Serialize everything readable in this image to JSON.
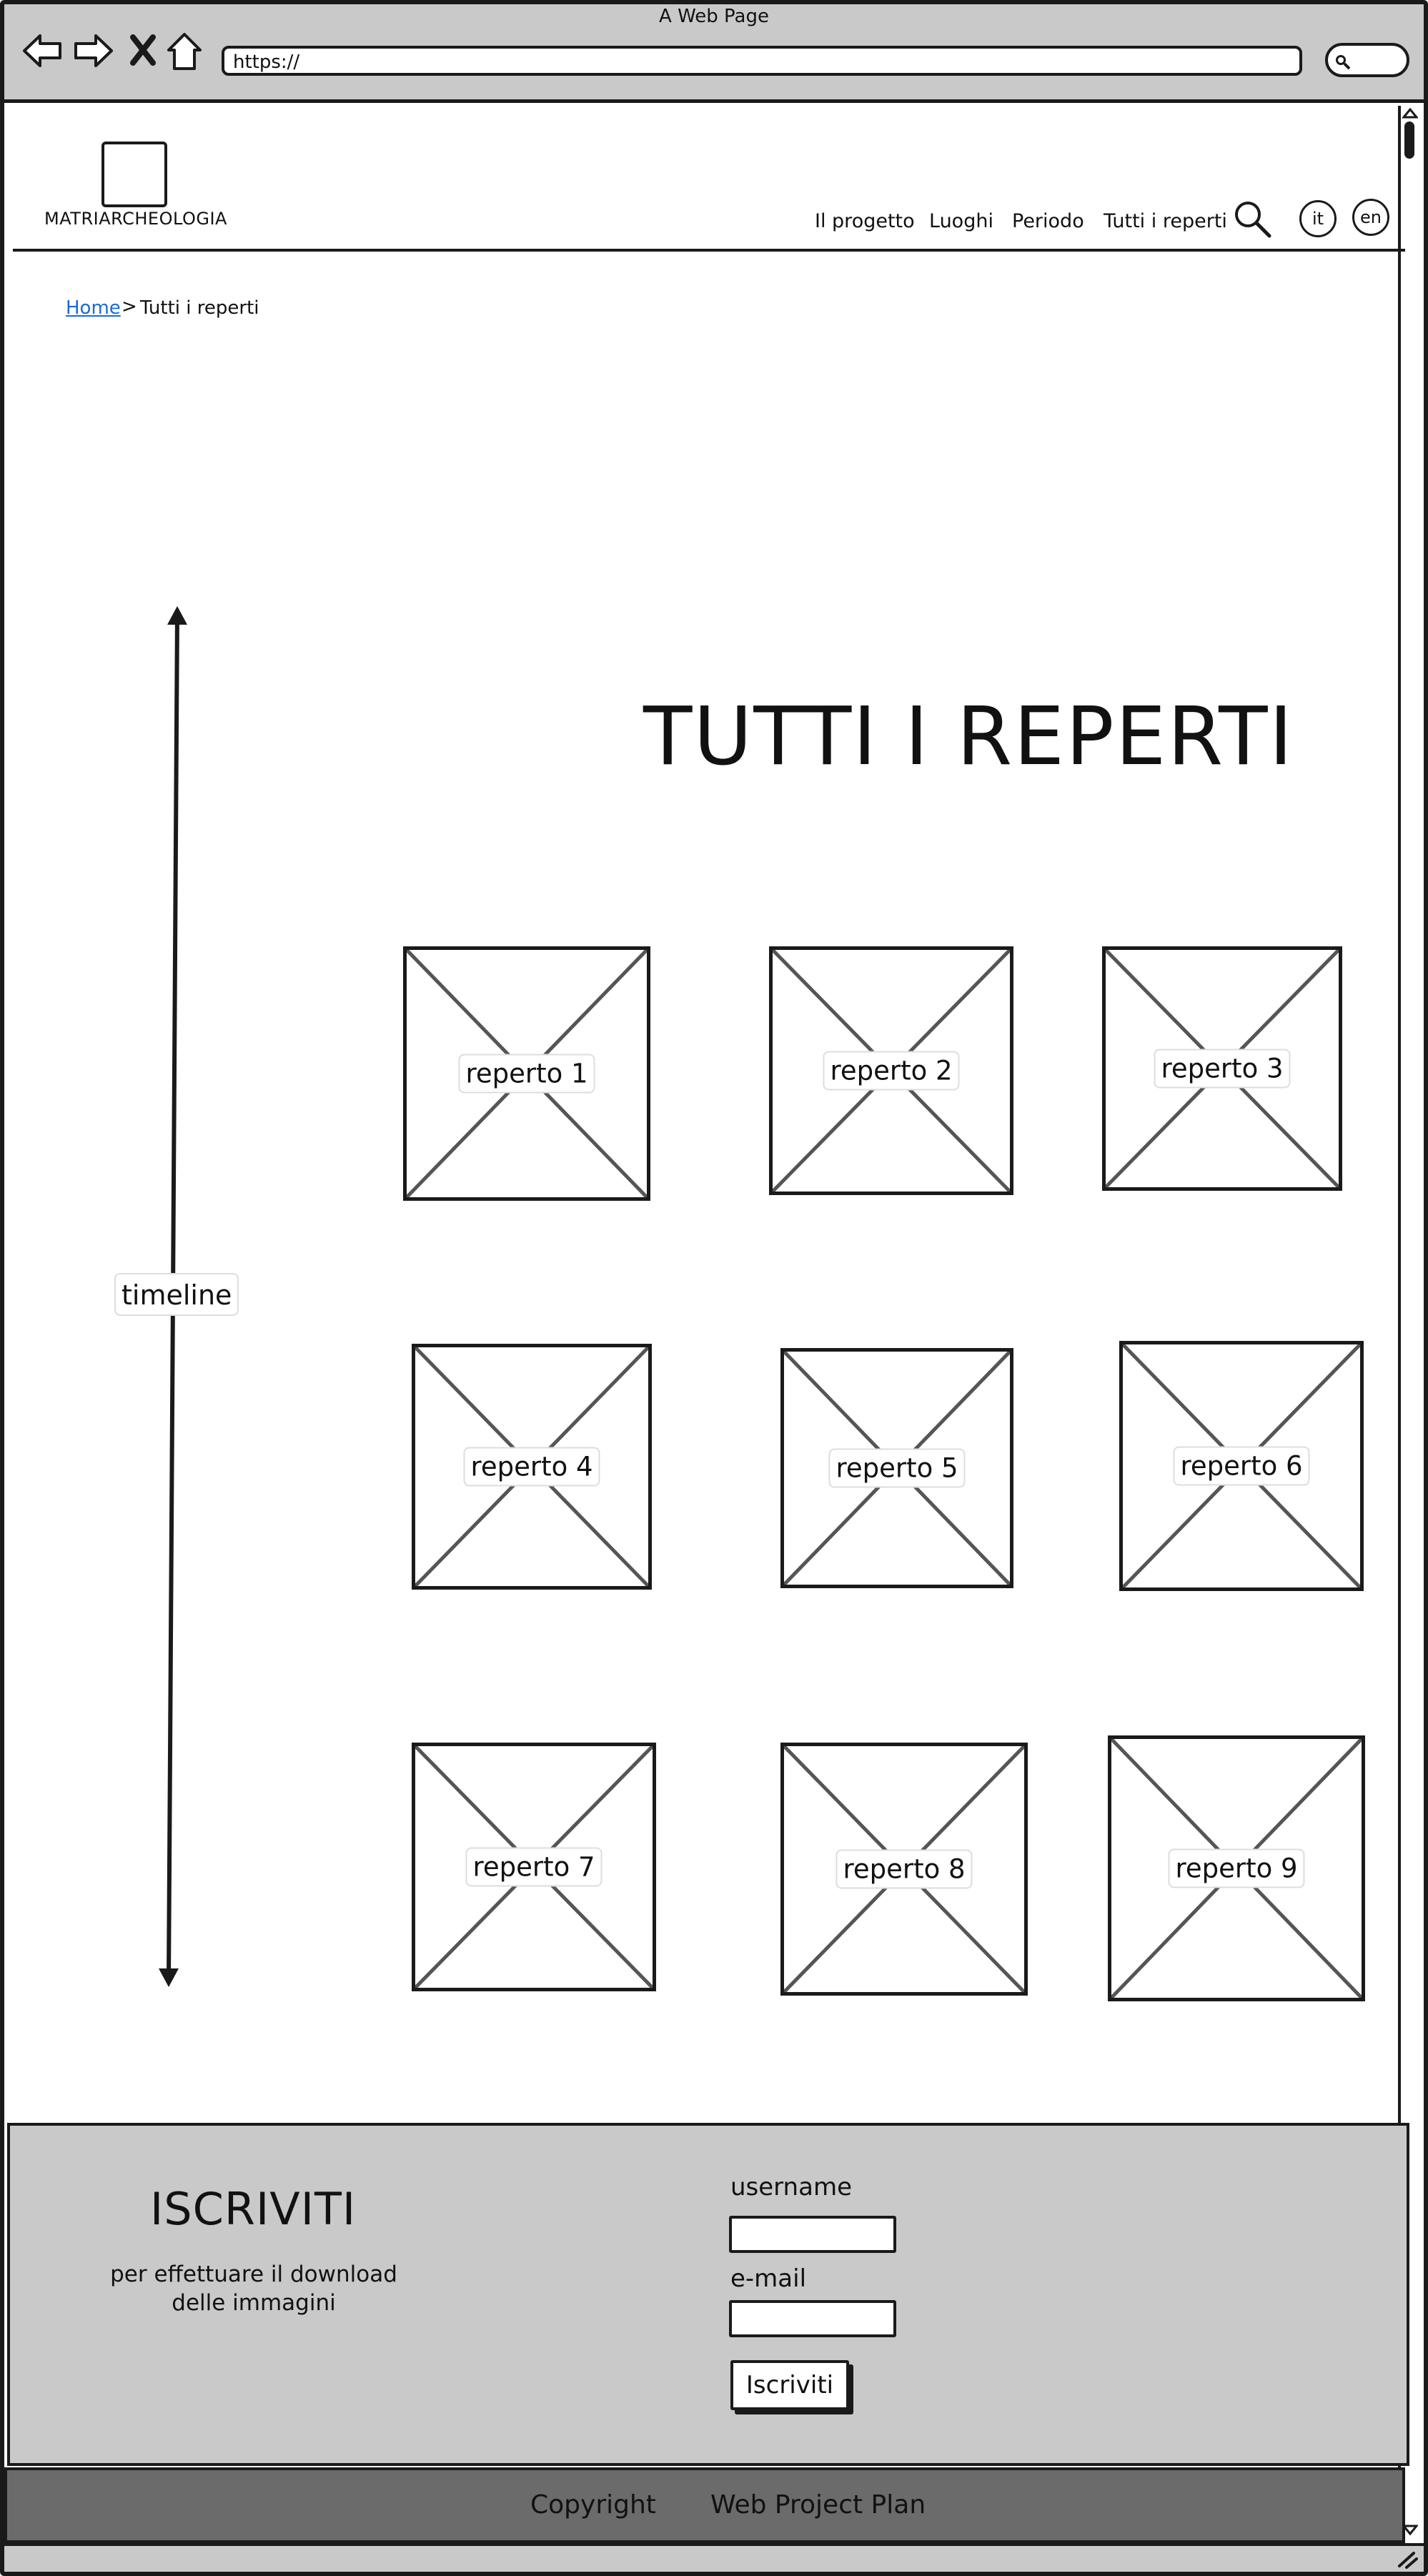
{
  "window": {
    "title": "A Web Page",
    "url": "https://"
  },
  "header": {
    "site_name": "MATRIARCHEOLOGIA",
    "nav": [
      "Il progetto",
      "Luoghi",
      "Periodo",
      "Tutti i reperti"
    ],
    "languages": [
      "it",
      "en"
    ]
  },
  "breadcrumb": {
    "home": "Home",
    "separator": ">",
    "current": "Tutti i reperti"
  },
  "main": {
    "title": "TUTTI I REPERTI",
    "timeline_label": "timeline",
    "items": [
      "reperto 1",
      "reperto 2",
      "reperto 3",
      "reperto 4",
      "reperto 5",
      "reperto 6",
      "reperto 7",
      "reperto 8",
      "reperto 9"
    ]
  },
  "signup": {
    "title": "ISCRIVITI",
    "subtitle": "per effettuare il download delle immagini",
    "username_label": "username",
    "email_label": "e-mail",
    "button": "Iscriviti"
  },
  "footer": {
    "copyright": "Copyright",
    "plan": "Web Project Plan"
  },
  "colors": {
    "chrome_gray": "#c9c9c9",
    "footer_dark": "#6b6b6b",
    "link_blue": "#1a6bd6",
    "stroke": "#1a1a1a"
  }
}
